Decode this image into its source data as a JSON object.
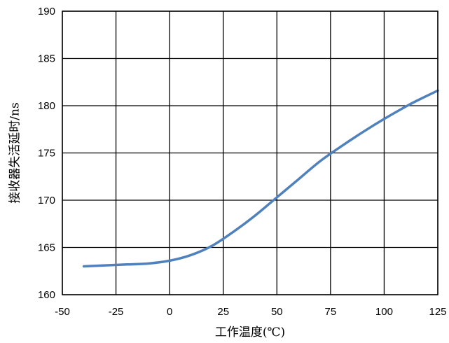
{
  "chart_data": {
    "type": "line",
    "title": "",
    "xlabel": "工作温度(℃)",
    "ylabel": "接收器失活延时/ns",
    "xlim": [
      -50,
      125
    ],
    "ylim": [
      160,
      190
    ],
    "x_ticks": [
      -50,
      -25,
      0,
      25,
      50,
      75,
      100,
      125
    ],
    "y_ticks": [
      160,
      165,
      170,
      175,
      180,
      185,
      190
    ],
    "grid": true,
    "legend": "none",
    "series": [
      {
        "color": "#4f81bd",
        "x": [
          -40,
          -30,
          -20,
          -10,
          0,
          10,
          20,
          30,
          40,
          50,
          60,
          70,
          80,
          90,
          100,
          110,
          115,
          125
        ],
        "y": [
          163.0,
          163.1,
          163.2,
          163.3,
          163.6,
          164.2,
          165.2,
          166.7,
          168.4,
          170.3,
          172.2,
          174.1,
          175.7,
          177.2,
          178.6,
          179.9,
          180.5,
          181.6
        ]
      }
    ]
  }
}
